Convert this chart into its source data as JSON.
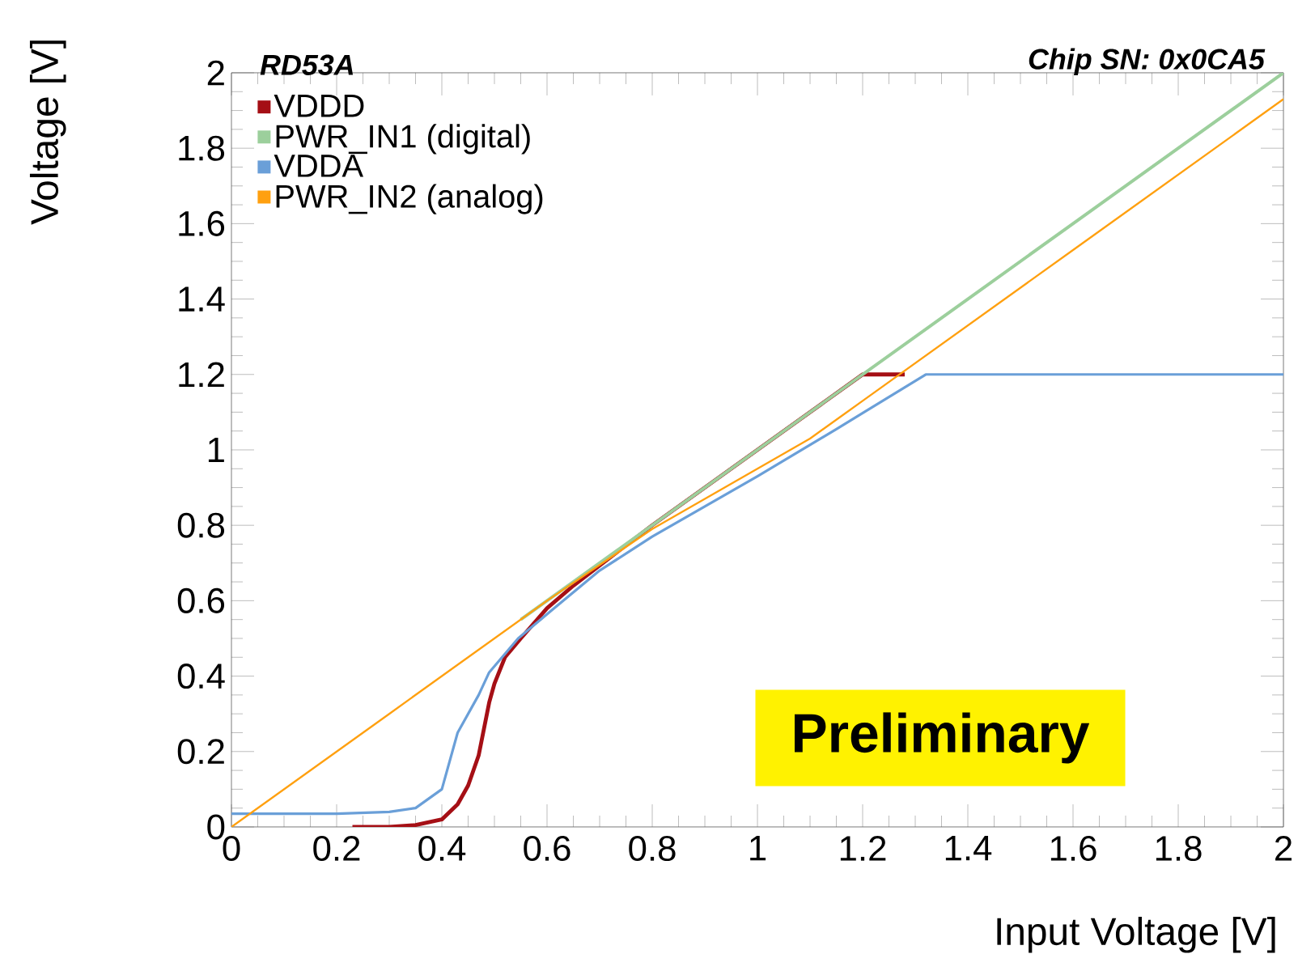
{
  "chart_data": {
    "type": "line",
    "xlabel": "Input Voltage [V]",
    "ylabel": "Voltage [V]",
    "annotations": [
      "RD53A",
      "Chip SN: 0x0CA5",
      "Preliminary"
    ],
    "xlim": [
      0,
      2
    ],
    "ylim": [
      0,
      2
    ],
    "xticks": [
      0,
      0.2,
      0.4,
      0.6,
      0.8,
      1,
      1.2,
      1.4,
      1.6,
      1.8,
      2
    ],
    "yticks": [
      0,
      0.2,
      0.4,
      0.6,
      0.8,
      1,
      1.2,
      1.4,
      1.6,
      1.8,
      2
    ],
    "grid": false,
    "legend": "top left",
    "marker": "none",
    "line_style": "solid",
    "series": [
      {
        "name": "VDDD",
        "color": "#a50f15",
        "x": [
          0.23,
          0.3,
          0.35,
          0.4,
          0.43,
          0.45,
          0.47,
          0.49,
          0.5,
          0.52,
          0.55,
          0.6,
          0.65,
          0.8,
          1.0,
          1.2,
          1.28
        ],
        "values": [
          0,
          0,
          0.005,
          0.02,
          0.06,
          0.11,
          0.19,
          0.33,
          0.38,
          0.45,
          0.5,
          0.58,
          0.64,
          0.8,
          1.0,
          1.2,
          1.2
        ]
      },
      {
        "name": "PWR_IN1 (digital)",
        "color": "#9ccf9c",
        "x": [
          0.55,
          0.8,
          1.0,
          1.2,
          1.4,
          1.6,
          1.8,
          2
        ],
        "values": [
          0.55,
          0.8,
          1.0,
          1.2,
          1.4,
          1.6,
          1.8,
          2.0
        ]
      },
      {
        "name": "VDDA",
        "color": "#6a9fd8",
        "x": [
          0,
          0.2,
          0.3,
          0.35,
          0.4,
          0.43,
          0.47,
          0.49,
          0.545,
          0.605,
          0.7,
          0.8,
          0.9,
          1.0,
          1.15,
          1.32,
          1.5,
          1.7,
          2
        ],
        "values": [
          0.035,
          0.035,
          0.04,
          0.05,
          0.1,
          0.25,
          0.35,
          0.41,
          0.5,
          0.57,
          0.68,
          0.77,
          0.85,
          0.93,
          1.055,
          1.2,
          1.2,
          1.2,
          1.2
        ]
      },
      {
        "name": "PWR_IN2 (analog)",
        "color": "#ffa010",
        "x": [
          0,
          0.3,
          0.6,
          0.8,
          1.0,
          1.1,
          1.2,
          1.3,
          1.6,
          2
        ],
        "values": [
          0,
          0.3,
          0.6,
          0.79,
          0.95,
          1.03,
          1.13,
          1.23,
          1.53,
          1.93
        ]
      }
    ]
  }
}
